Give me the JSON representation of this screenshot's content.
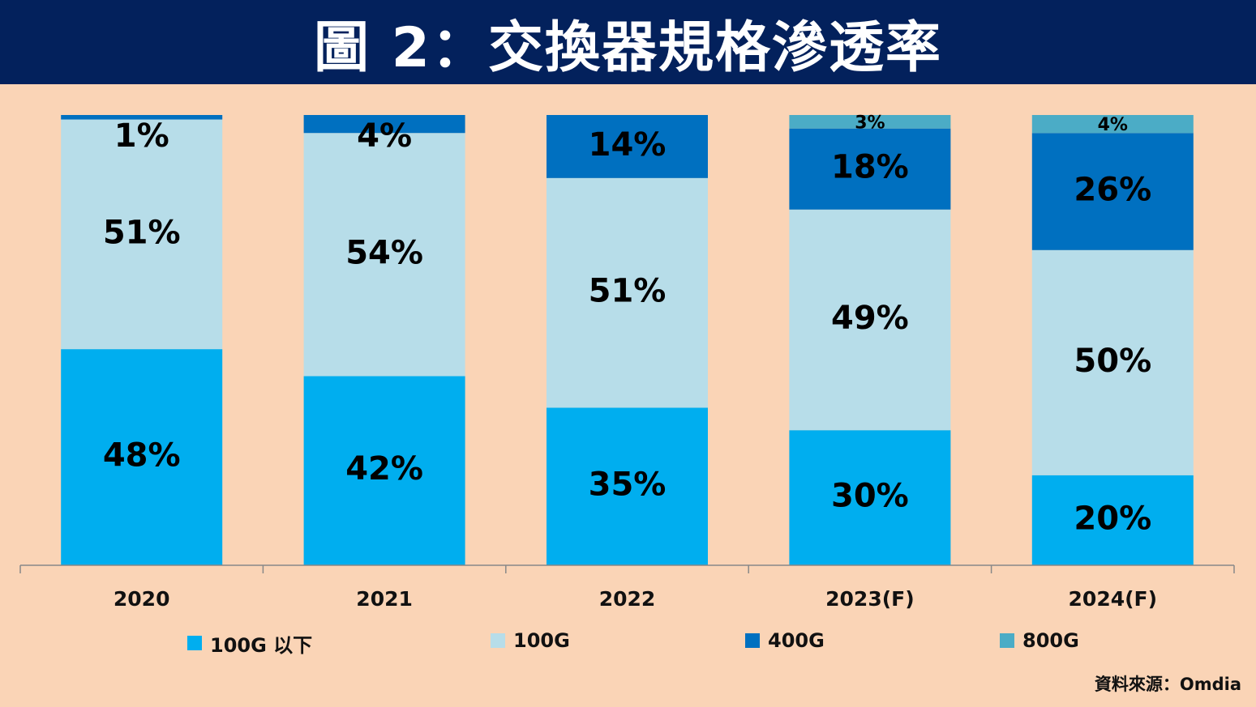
{
  "title": "圖 2：交換器規格滲透率",
  "source": "資料來源：Omdia",
  "chart_data": {
    "type": "bar",
    "stacked": true,
    "categories": [
      "2020",
      "2021",
      "2022",
      "2023(F)",
      "2024(F)"
    ],
    "series": [
      {
        "name": "100G 以下",
        "color": "#00aeef",
        "values": [
          48,
          42,
          35,
          30,
          20
        ]
      },
      {
        "name": "100G",
        "color": "#b7dde9",
        "values": [
          51,
          54,
          51,
          49,
          50
        ]
      },
      {
        "name": "400G",
        "color": "#0070c0",
        "values": [
          1,
          4,
          14,
          18,
          26
        ]
      },
      {
        "name": "800G",
        "color": "#4bacc6",
        "values": [
          0,
          0,
          0,
          3,
          4
        ]
      }
    ],
    "data_labels": [
      [
        "48%",
        "42%",
        "35%",
        "30%",
        "20%"
      ],
      [
        "51%",
        "54%",
        "51%",
        "49%",
        "50%"
      ],
      [
        "1%",
        "4%",
        "14%",
        "18%",
        "26%"
      ],
      [
        "",
        "",
        "",
        "3%",
        "4%"
      ]
    ],
    "ylim": [
      0,
      100
    ],
    "grid": false,
    "legend_position": "bottom"
  }
}
